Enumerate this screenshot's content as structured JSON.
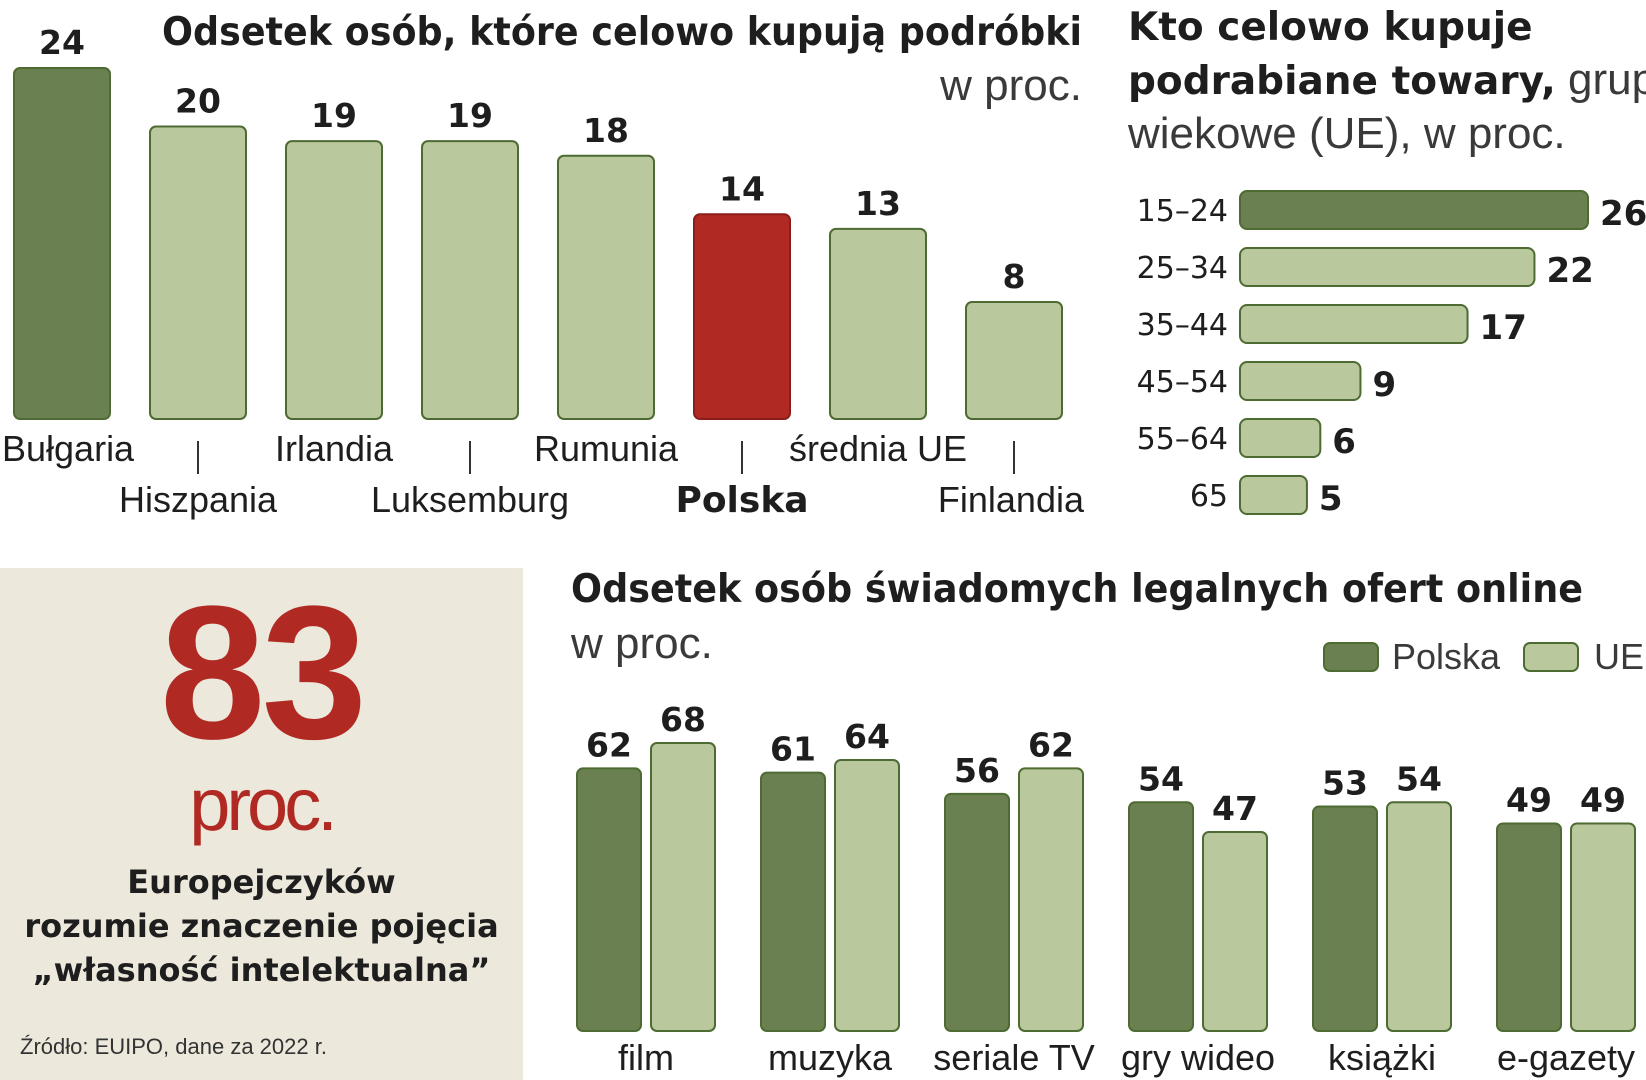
{
  "colors": {
    "dark": "#6a8050",
    "light": "#bac89e",
    "highlight": "#b02a23",
    "outline": "#4d6b32",
    "panel_bg": "#ece8dc"
  },
  "chart_data": [
    {
      "type": "bar",
      "title": "Odsetek osób, które celowo kupują podróbki",
      "subtitle": "w proc.",
      "categories": [
        "Bułgaria",
        "Hiszpania",
        "Irlandia",
        "Luksemburg",
        "Rumunia",
        "Polska",
        "średnia UE",
        "Finlandia"
      ],
      "values": [
        24,
        20,
        19,
        19,
        18,
        14,
        13,
        8
      ],
      "bar_styles": [
        "dark",
        "light",
        "light",
        "light",
        "light",
        "highlight",
        "light",
        "light"
      ],
      "ylim": [
        0,
        24
      ]
    },
    {
      "type": "bar",
      "orientation": "horizontal",
      "title_bold_lines": [
        "Kto celowo kupuje",
        "podrabiane towary,"
      ],
      "title_light_tail": "grupy",
      "title_light_line": "wiekowe (UE), w proc.",
      "categories": [
        "15–24",
        "25–34",
        "35–44",
        "45–54",
        "55–64",
        "65"
      ],
      "values": [
        26,
        22,
        17,
        9,
        6,
        5
      ],
      "bar_styles": [
        "dark",
        "light",
        "light",
        "light",
        "light",
        "light"
      ],
      "xlim": [
        0,
        26
      ]
    },
    {
      "type": "bar",
      "title": "Odsetek osób świadomych legalnych ofert online",
      "subtitle": "w proc.",
      "categories": [
        "film",
        "muzyka",
        "seriale TV",
        "gry wideo",
        "książki",
        "e-gazety"
      ],
      "series": [
        {
          "name": "Polska",
          "style": "dark",
          "values": [
            62,
            61,
            56,
            54,
            53,
            49
          ]
        },
        {
          "name": "UE",
          "style": "light",
          "values": [
            68,
            64,
            62,
            47,
            54,
            49
          ]
        }
      ],
      "legend": "top-right",
      "ylim": [
        0,
        68
      ]
    }
  ],
  "stat": {
    "number": "83",
    "unit": "proc.",
    "lines": [
      "Europejczyków",
      "rozumie znaczenie pojęcia",
      "„własność intelektualna”"
    ]
  },
  "source": "Źródło: EUIPO, dane za 2022 r."
}
